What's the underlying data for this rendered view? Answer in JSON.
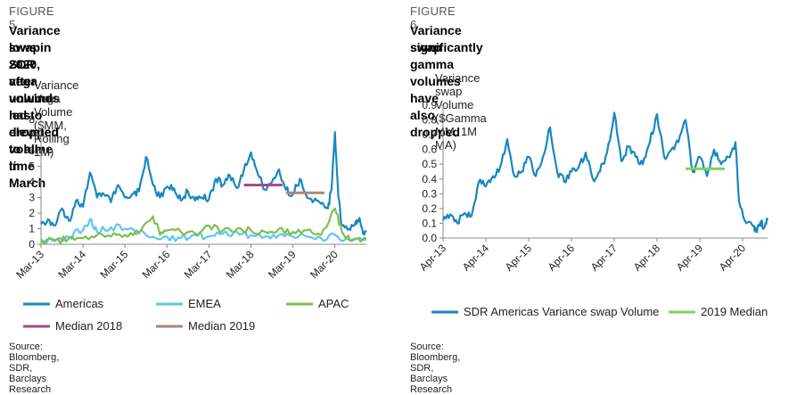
{
  "figures": [
    {
      "number": "FIGURE 5",
      "title_lines": [
        "Variance swap SDR vega volume has dropped to all-time",
        "lows in 2020, after unwinds led to elevated volume in March"
      ],
      "source": "Source: Bloomberg, SDR, Barclays Research"
    },
    {
      "number": "FIGURE 6",
      "title_lines": [
        "Variance swap gamma volumes have also dropped",
        "significantly"
      ],
      "source": "Source: Bloomberg, SDR, Barclays Research"
    }
  ],
  "chart_data": [
    {
      "type": "line",
      "title": "Variance Vega Volume ($MM, Rolling 1M)",
      "x_start": "Mar-13",
      "x_end": "Dec-20",
      "x_tick_labels": [
        "Mar-13",
        "Mar-14",
        "Mar-15",
        "Mar-16",
        "Mar-17",
        "Mar-18",
        "Mar-19",
        "Mar-20"
      ],
      "ylim": [
        0,
        8
      ],
      "y_ticks": [
        0,
        1,
        2,
        3,
        4,
        5,
        6,
        7,
        8
      ],
      "grid": false,
      "legend_position": "bottom",
      "series": [
        {
          "name": "Americas",
          "color": "#1a87c1",
          "points": [
            [
              "Mar-13",
              1.3
            ],
            [
              "May-13",
              1.6
            ],
            [
              "Jul-13",
              1.2
            ],
            [
              "Sep-13",
              2.3
            ],
            [
              "Nov-13",
              1.5
            ],
            [
              "Jan-14",
              2.8
            ],
            [
              "Mar-14",
              2.4
            ],
            [
              "May-14",
              4.6
            ],
            [
              "Jul-14",
              3.0
            ],
            [
              "Sep-14",
              3.2
            ],
            [
              "Nov-14",
              2.7
            ],
            [
              "Jan-15",
              3.8
            ],
            [
              "Mar-15",
              3.0
            ],
            [
              "May-15",
              3.2
            ],
            [
              "Jul-15",
              3.4
            ],
            [
              "Sep-15",
              5.6
            ],
            [
              "Nov-15",
              3.8
            ],
            [
              "Jan-16",
              3.0
            ],
            [
              "Mar-16",
              3.7
            ],
            [
              "May-16",
              3.6
            ],
            [
              "Jul-16",
              2.8
            ],
            [
              "Sep-16",
              3.4
            ],
            [
              "Nov-16",
              2.8
            ],
            [
              "Jan-17",
              3.0
            ],
            [
              "Mar-17",
              2.9
            ],
            [
              "May-17",
              4.2
            ],
            [
              "Jul-17",
              3.8
            ],
            [
              "Sep-17",
              4.4
            ],
            [
              "Nov-17",
              3.6
            ],
            [
              "Jan-18",
              4.8
            ],
            [
              "Mar-18",
              5.9
            ],
            [
              "May-18",
              4.5
            ],
            [
              "Jul-18",
              3.5
            ],
            [
              "Sep-18",
              4.0
            ],
            [
              "Nov-18",
              4.8
            ],
            [
              "Jan-19",
              3.5
            ],
            [
              "Mar-19",
              3.2
            ],
            [
              "May-19",
              4.2
            ],
            [
              "Jul-19",
              3.0
            ],
            [
              "Sep-19",
              2.8
            ],
            [
              "Nov-19",
              2.6
            ],
            [
              "Jan-20",
              2.3
            ],
            [
              "Feb-20",
              3.5
            ],
            [
              "Mar-20",
              7.2
            ],
            [
              "Apr-20",
              3.0
            ],
            [
              "May-20",
              1.2
            ],
            [
              "Jul-20",
              1.0
            ],
            [
              "Sep-20",
              1.5
            ],
            [
              "Oct-20",
              1.7
            ],
            [
              "Nov-20",
              0.7
            ],
            [
              "Dec-20",
              0.8
            ]
          ]
        },
        {
          "name": "EMEA",
          "color": "#5bc8f0",
          "points": [
            [
              "Mar-13",
              0.3
            ],
            [
              "Jul-13",
              0.3
            ],
            [
              "Nov-13",
              0.5
            ],
            [
              "Mar-14",
              0.9
            ],
            [
              "May-14",
              1.6
            ],
            [
              "Jul-14",
              0.8
            ],
            [
              "Nov-14",
              1.1
            ],
            [
              "Mar-15",
              1.0
            ],
            [
              "Jul-15",
              0.8
            ],
            [
              "Nov-15",
              0.5
            ],
            [
              "Mar-16",
              0.5
            ],
            [
              "Jul-16",
              0.4
            ],
            [
              "Nov-16",
              0.6
            ],
            [
              "Mar-17",
              0.5
            ],
            [
              "Jul-17",
              0.7
            ],
            [
              "Nov-17",
              0.8
            ],
            [
              "Mar-18",
              0.6
            ],
            [
              "Jul-18",
              0.5
            ],
            [
              "Nov-18",
              0.6
            ],
            [
              "Mar-19",
              0.5
            ],
            [
              "Jul-19",
              0.5
            ],
            [
              "Nov-19",
              0.4
            ],
            [
              "Mar-20",
              0.6
            ],
            [
              "Jul-20",
              0.3
            ],
            [
              "Dec-20",
              0.3
            ]
          ]
        },
        {
          "name": "APAC",
          "color": "#7fbf4d",
          "points": [
            [
              "Mar-13",
              0.3
            ],
            [
              "Jul-13",
              0.2
            ],
            [
              "Nov-13",
              0.4
            ],
            [
              "Mar-14",
              0.4
            ],
            [
              "Jul-14",
              0.6
            ],
            [
              "Nov-14",
              0.5
            ],
            [
              "Mar-15",
              0.6
            ],
            [
              "Jul-15",
              0.7
            ],
            [
              "Nov-15",
              1.8
            ],
            [
              "Jan-16",
              0.6
            ],
            [
              "Mar-16",
              0.9
            ],
            [
              "Jul-16",
              0.8
            ],
            [
              "Nov-16",
              0.7
            ],
            [
              "Mar-17",
              1.2
            ],
            [
              "Jul-17",
              0.9
            ],
            [
              "Nov-17",
              1.0
            ],
            [
              "Mar-18",
              0.9
            ],
            [
              "Jul-18",
              0.8
            ],
            [
              "Nov-18",
              1.0
            ],
            [
              "Mar-19",
              0.8
            ],
            [
              "Jul-19",
              0.9
            ],
            [
              "Nov-19",
              0.6
            ],
            [
              "Mar-20",
              2.3
            ],
            [
              "May-20",
              0.8
            ],
            [
              "Aug-20",
              0.3
            ],
            [
              "Dec-20",
              0.4
            ]
          ]
        },
        {
          "name": "Median 2018",
          "color": "#a24d8a",
          "points": [
            [
              "Jan-18",
              3.8
            ],
            [
              "Dec-18",
              3.8
            ]
          ]
        },
        {
          "name": "Median 2019",
          "color": "#a9877a",
          "points": [
            [
              "Jan-19",
              3.3
            ],
            [
              "Dec-19",
              3.3
            ]
          ]
        }
      ]
    },
    {
      "type": "line",
      "title": "Variance swap Volume ($Gamma MM,  1M MA)",
      "x_start": "Apr-13",
      "x_end": "Nov-20",
      "x_tick_labels": [
        "Apr-13",
        "Apr-14",
        "Apr-15",
        "Apr-16",
        "Apr-17",
        "Apr-18",
        "Apr-19",
        "Apr-20"
      ],
      "ylim": [
        0,
        0.9
      ],
      "y_ticks": [
        0.0,
        0.1,
        0.2,
        0.3,
        0.4,
        0.5,
        0.6,
        0.7,
        0.8,
        0.9
      ],
      "grid": false,
      "legend_position": "bottom",
      "series": [
        {
          "name": "SDR Americas Variance swap Volume",
          "color": "#1a87c1",
          "points": [
            [
              "Apr-13",
              0.12
            ],
            [
              "Jun-13",
              0.16
            ],
            [
              "Aug-13",
              0.1
            ],
            [
              "Oct-13",
              0.17
            ],
            [
              "Dec-13",
              0.15
            ],
            [
              "Feb-14",
              0.38
            ],
            [
              "Apr-14",
              0.35
            ],
            [
              "Jun-14",
              0.42
            ],
            [
              "Aug-14",
              0.48
            ],
            [
              "Oct-14",
              0.67
            ],
            [
              "Dec-14",
              0.42
            ],
            [
              "Feb-15",
              0.45
            ],
            [
              "Apr-15",
              0.55
            ],
            [
              "Jun-15",
              0.42
            ],
            [
              "Aug-15",
              0.55
            ],
            [
              "Oct-15",
              0.75
            ],
            [
              "Dec-15",
              0.45
            ],
            [
              "Feb-16",
              0.38
            ],
            [
              "Apr-16",
              0.45
            ],
            [
              "Jun-16",
              0.48
            ],
            [
              "Aug-16",
              0.58
            ],
            [
              "Oct-16",
              0.4
            ],
            [
              "Dec-16",
              0.45
            ],
            [
              "Feb-17",
              0.58
            ],
            [
              "Apr-17",
              0.85
            ],
            [
              "Jun-17",
              0.52
            ],
            [
              "Aug-17",
              0.62
            ],
            [
              "Oct-17",
              0.55
            ],
            [
              "Dec-17",
              0.5
            ],
            [
              "Feb-18",
              0.65
            ],
            [
              "Apr-18",
              0.84
            ],
            [
              "Jun-18",
              0.55
            ],
            [
              "Aug-18",
              0.6
            ],
            [
              "Oct-18",
              0.65
            ],
            [
              "Dec-18",
              0.8
            ],
            [
              "Feb-19",
              0.45
            ],
            [
              "Apr-19",
              0.55
            ],
            [
              "Jun-19",
              0.42
            ],
            [
              "Aug-19",
              0.6
            ],
            [
              "Oct-19",
              0.5
            ],
            [
              "Dec-19",
              0.55
            ],
            [
              "Feb-20",
              0.65
            ],
            [
              "Mar-20",
              0.25
            ],
            [
              "May-20",
              0.1
            ],
            [
              "Jul-20",
              0.08
            ],
            [
              "Aug-20",
              0.04
            ],
            [
              "Sep-20",
              0.11
            ],
            [
              "Oct-20",
              0.07
            ],
            [
              "Nov-20",
              0.12
            ]
          ]
        },
        {
          "name": "2019 Median",
          "color": "#7fd35a",
          "points": [
            [
              "Dec-18",
              0.47
            ],
            [
              "Nov-19",
              0.47
            ]
          ]
        }
      ]
    }
  ]
}
